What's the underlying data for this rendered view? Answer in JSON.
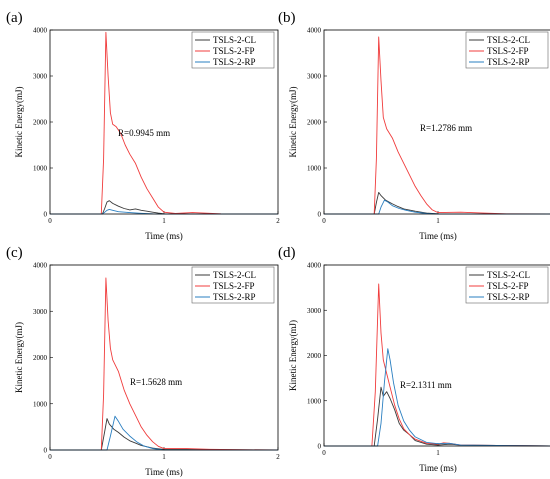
{
  "colors": {
    "CL": "#3a3a3a",
    "FP": "#f03c3c",
    "RP": "#2a7fc1"
  },
  "chart_data": [
    {
      "type": "line",
      "panel_label": "(a)",
      "xlabel": "Time (ms)",
      "ylabel": "Kinetic Energy(mJ)",
      "xlim": [
        0,
        2
      ],
      "ylim": [
        0,
        4000
      ],
      "xticks": [
        "0",
        "1",
        "2"
      ],
      "yticks": [
        "0",
        "1000",
        "2000",
        "3000",
        "4000"
      ],
      "annotation": "R=0.9945 mm",
      "legend_position": "top-right",
      "series": [
        {
          "name": "TSLS-2-CL",
          "color_key": "CL",
          "points": [
            [
              0,
              0
            ],
            [
              0.46,
              0
            ],
            [
              0.48,
              120
            ],
            [
              0.5,
              260
            ],
            [
              0.52,
              290
            ],
            [
              0.55,
              230
            ],
            [
              0.6,
              170
            ],
            [
              0.65,
              120
            ],
            [
              0.7,
              90
            ],
            [
              0.75,
              110
            ],
            [
              0.8,
              80
            ],
            [
              0.85,
              60
            ],
            [
              0.9,
              40
            ],
            [
              0.95,
              20
            ],
            [
              1.0,
              5
            ],
            [
              1.1,
              0
            ],
            [
              2,
              0
            ]
          ]
        },
        {
          "name": "TSLS-2-FP",
          "color_key": "FP",
          "points": [
            [
              0,
              0
            ],
            [
              0.3,
              0
            ],
            [
              0.45,
              0
            ],
            [
              0.47,
              1200
            ],
            [
              0.49,
              3950
            ],
            [
              0.51,
              3000
            ],
            [
              0.53,
              2200
            ],
            [
              0.55,
              1950
            ],
            [
              0.58,
              1900
            ],
            [
              0.62,
              1750
            ],
            [
              0.66,
              1500
            ],
            [
              0.7,
              1300
            ],
            [
              0.75,
              1100
            ],
            [
              0.8,
              800
            ],
            [
              0.85,
              550
            ],
            [
              0.9,
              350
            ],
            [
              0.95,
              150
            ],
            [
              1.0,
              40
            ],
            [
              1.1,
              10
            ],
            [
              1.25,
              30
            ],
            [
              1.35,
              20
            ],
            [
              1.5,
              5
            ],
            [
              2,
              0
            ]
          ]
        },
        {
          "name": "TSLS-2-RP",
          "color_key": "RP",
          "points": [
            [
              0,
              0
            ],
            [
              0.46,
              0
            ],
            [
              0.48,
              40
            ],
            [
              0.5,
              80
            ],
            [
              0.52,
              100
            ],
            [
              0.55,
              80
            ],
            [
              0.6,
              50
            ],
            [
              0.7,
              30
            ],
            [
              0.8,
              15
            ],
            [
              0.9,
              5
            ],
            [
              1.0,
              0
            ],
            [
              2,
              0
            ]
          ]
        }
      ]
    },
    {
      "type": "line",
      "panel_label": "(b)",
      "xlabel": "Time (ms)",
      "ylabel": "Kinetic Energy(mJ)",
      "xlim": [
        0,
        2
      ],
      "ylim": [
        0,
        4000
      ],
      "xticks": [
        "0",
        "1",
        "2"
      ],
      "yticks": [
        "0",
        "1000",
        "2000",
        "3000",
        "4000"
      ],
      "annotation": "R=1.2786 mm",
      "legend_position": "top-right",
      "series": [
        {
          "name": "TSLS-2-CL",
          "color_key": "CL",
          "points": [
            [
              0,
              0
            ],
            [
              0.44,
              0
            ],
            [
              0.46,
              250
            ],
            [
              0.48,
              470
            ],
            [
              0.5,
              400
            ],
            [
              0.54,
              300
            ],
            [
              0.6,
              220
            ],
            [
              0.65,
              160
            ],
            [
              0.7,
              110
            ],
            [
              0.8,
              60
            ],
            [
              0.9,
              20
            ],
            [
              1.0,
              5
            ],
            [
              2,
              0
            ]
          ]
        },
        {
          "name": "TSLS-2-FP",
          "color_key": "FP",
          "points": [
            [
              0,
              0
            ],
            [
              0.44,
              0
            ],
            [
              0.46,
              1200
            ],
            [
              0.48,
              3850
            ],
            [
              0.5,
              2900
            ],
            [
              0.52,
              2100
            ],
            [
              0.55,
              1850
            ],
            [
              0.6,
              1650
            ],
            [
              0.65,
              1350
            ],
            [
              0.7,
              1100
            ],
            [
              0.75,
              850
            ],
            [
              0.8,
              600
            ],
            [
              0.85,
              400
            ],
            [
              0.9,
              220
            ],
            [
              0.95,
              90
            ],
            [
              1.0,
              30
            ],
            [
              1.2,
              40
            ],
            [
              1.4,
              20
            ],
            [
              1.6,
              5
            ],
            [
              2,
              0
            ]
          ]
        },
        {
          "name": "TSLS-2-RP",
          "color_key": "RP",
          "points": [
            [
              0,
              0
            ],
            [
              0.48,
              0
            ],
            [
              0.5,
              150
            ],
            [
              0.53,
              300
            ],
            [
              0.56,
              260
            ],
            [
              0.6,
              180
            ],
            [
              0.66,
              120
            ],
            [
              0.72,
              80
            ],
            [
              0.8,
              40
            ],
            [
              0.9,
              10
            ],
            [
              1.0,
              0
            ],
            [
              2,
              0
            ]
          ]
        }
      ]
    },
    {
      "type": "line",
      "panel_label": "(c)",
      "xlabel": "Time (ms)",
      "ylabel": "Kinetic Energy(mJ)",
      "xlim": [
        0,
        2
      ],
      "ylim": [
        0,
        4000
      ],
      "xticks": [
        "0",
        "1",
        "2"
      ],
      "yticks": [
        "0",
        "1000",
        "2000",
        "3000",
        "4000"
      ],
      "annotation": "R=1.5628 mm",
      "legend_position": "top-right",
      "series": [
        {
          "name": "TSLS-2-CL",
          "color_key": "CL",
          "points": [
            [
              0,
              0
            ],
            [
              0.45,
              0
            ],
            [
              0.48,
              400
            ],
            [
              0.5,
              680
            ],
            [
              0.52,
              560
            ],
            [
              0.56,
              450
            ],
            [
              0.6,
              380
            ],
            [
              0.65,
              280
            ],
            [
              0.7,
              200
            ],
            [
              0.75,
              150
            ],
            [
              0.8,
              100
            ],
            [
              0.9,
              40
            ],
            [
              1.0,
              10
            ],
            [
              2,
              0
            ]
          ]
        },
        {
          "name": "TSLS-2-FP",
          "color_key": "FP",
          "points": [
            [
              0,
              0
            ],
            [
              0.45,
              0
            ],
            [
              0.47,
              1200
            ],
            [
              0.49,
              3720
            ],
            [
              0.51,
              2800
            ],
            [
              0.53,
              2200
            ],
            [
              0.55,
              1950
            ],
            [
              0.6,
              1700
            ],
            [
              0.65,
              1300
            ],
            [
              0.7,
              1000
            ],
            [
              0.75,
              750
            ],
            [
              0.8,
              500
            ],
            [
              0.85,
              320
            ],
            [
              0.9,
              180
            ],
            [
              0.95,
              80
            ],
            [
              1.0,
              30
            ],
            [
              1.2,
              30
            ],
            [
              1.4,
              15
            ],
            [
              2,
              0
            ]
          ]
        },
        {
          "name": "TSLS-2-RP",
          "color_key": "RP",
          "points": [
            [
              0,
              0
            ],
            [
              0.5,
              0
            ],
            [
              0.53,
              300
            ],
            [
              0.57,
              730
            ],
            [
              0.6,
              620
            ],
            [
              0.64,
              450
            ],
            [
              0.7,
              300
            ],
            [
              0.76,
              180
            ],
            [
              0.82,
              90
            ],
            [
              0.9,
              30
            ],
            [
              1.0,
              0
            ],
            [
              2,
              0
            ]
          ]
        }
      ]
    },
    {
      "type": "line",
      "panel_label": "(d)",
      "xlabel": "Time (ms)",
      "ylabel": "Kinetic Energy(mJ)",
      "xlim": [
        0,
        2
      ],
      "ylim": [
        0,
        4000
      ],
      "xticks": [
        "0",
        "1",
        "2"
      ],
      "yticks": [
        "0",
        "1000",
        "2000",
        "3000",
        "4000"
      ],
      "annotation": "R=2.1311 mm",
      "legend_position": "top-right",
      "series": [
        {
          "name": "TSLS-2-CL",
          "color_key": "CL",
          "points": [
            [
              0,
              0
            ],
            [
              0.44,
              0
            ],
            [
              0.47,
              600
            ],
            [
              0.5,
              1300
            ],
            [
              0.52,
              1100
            ],
            [
              0.55,
              1200
            ],
            [
              0.58,
              1050
            ],
            [
              0.62,
              800
            ],
            [
              0.66,
              500
            ],
            [
              0.7,
              350
            ],
            [
              0.75,
              250
            ],
            [
              0.8,
              120
            ],
            [
              0.9,
              40
            ],
            [
              1.0,
              20
            ],
            [
              1.1,
              40
            ],
            [
              1.2,
              20
            ],
            [
              2,
              0
            ]
          ]
        },
        {
          "name": "TSLS-2-FP",
          "color_key": "FP",
          "points": [
            [
              0,
              0
            ],
            [
              0.42,
              0
            ],
            [
              0.45,
              1200
            ],
            [
              0.48,
              3580
            ],
            [
              0.5,
              2500
            ],
            [
              0.52,
              1900
            ],
            [
              0.55,
              1600
            ],
            [
              0.58,
              1300
            ],
            [
              0.62,
              900
            ],
            [
              0.66,
              600
            ],
            [
              0.7,
              380
            ],
            [
              0.75,
              250
            ],
            [
              0.8,
              150
            ],
            [
              0.9,
              60
            ],
            [
              1.0,
              40
            ],
            [
              1.05,
              70
            ],
            [
              1.1,
              60
            ],
            [
              1.2,
              20
            ],
            [
              2,
              0
            ]
          ]
        },
        {
          "name": "TSLS-2-RP",
          "color_key": "RP",
          "points": [
            [
              0,
              0
            ],
            [
              0.47,
              0
            ],
            [
              0.5,
              500
            ],
            [
              0.53,
              1400
            ],
            [
              0.56,
              2150
            ],
            [
              0.58,
              1900
            ],
            [
              0.61,
              1400
            ],
            [
              0.65,
              900
            ],
            [
              0.7,
              550
            ],
            [
              0.75,
              350
            ],
            [
              0.8,
              200
            ],
            [
              0.9,
              80
            ],
            [
              1.0,
              50
            ],
            [
              1.1,
              60
            ],
            [
              1.2,
              20
            ],
            [
              2,
              0
            ]
          ]
        }
      ]
    }
  ]
}
